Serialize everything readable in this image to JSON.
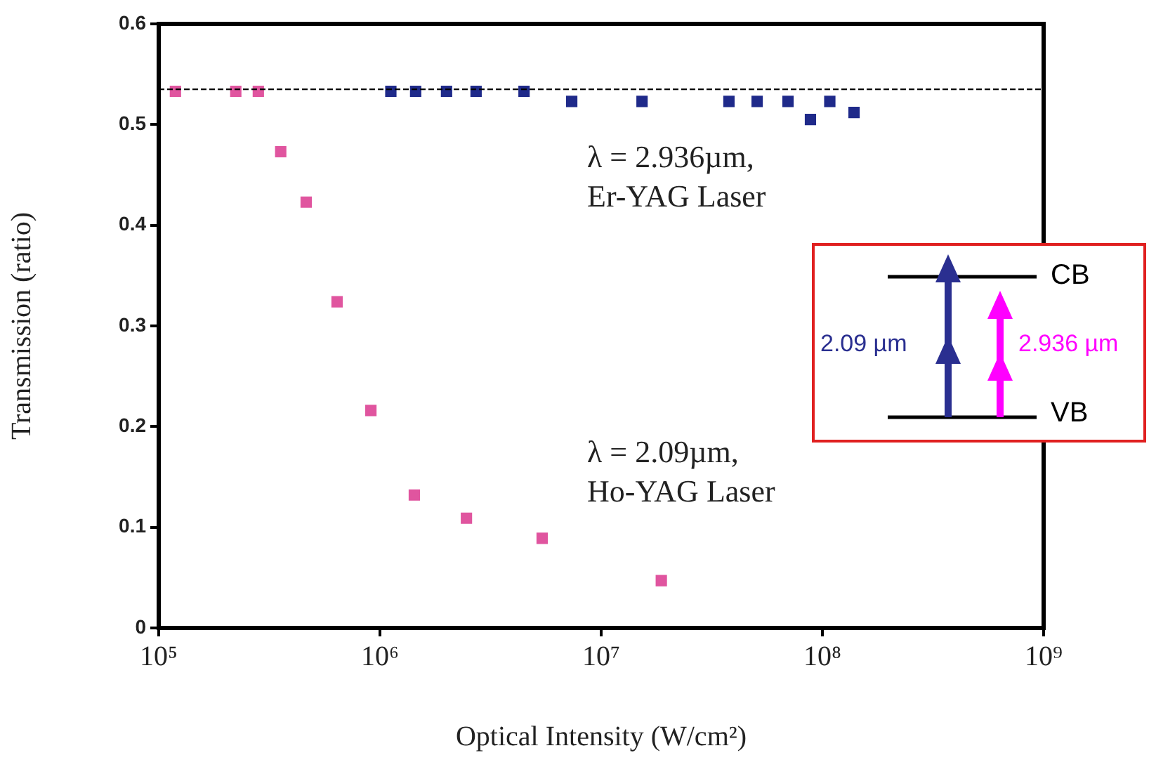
{
  "chart_data": {
    "type": "scatter",
    "xlabel": "Optical Intensity (W/cm²)",
    "ylabel": "Transmission (ratio)",
    "log": "x",
    "grid": false,
    "legend": false,
    "marker": "square",
    "xlim": [
      100000,
      1000000000
    ],
    "xticks": [
      {
        "value": 100000,
        "label": "10⁵"
      },
      {
        "value": 1000000,
        "label": "10⁶"
      },
      {
        "value": 10000000,
        "label": "10⁷"
      },
      {
        "value": 100000000,
        "label": "10⁸"
      },
      {
        "value": 1000000000,
        "label": "10⁹"
      }
    ],
    "ylim": [
      0,
      0.6
    ],
    "yticks": [
      0,
      0.1,
      0.2,
      0.3,
      0.4,
      0.5,
      0.6
    ],
    "series": [
      {
        "color": "#e0559f",
        "x": [
          119000,
          223000,
          282000,
          356000,
          464000,
          640000,
          910000,
          1430000,
          2460000,
          5410000,
          18700000
        ],
        "values": [
          0.533,
          0.533,
          0.533,
          0.473,
          0.423,
          0.324,
          0.216,
          0.132,
          0.109,
          0.089,
          0.047
        ]
      },
      {
        "color": "#1f2a8a",
        "x": [
          1120000,
          1450000,
          2000000,
          2720000,
          4480000,
          7360000,
          15300000,
          37800000,
          50700000,
          69900000,
          88300000,
          108000000,
          139000000
        ],
        "values": [
          0.533,
          0.533,
          0.533,
          0.533,
          0.533,
          0.523,
          0.523,
          0.523,
          0.523,
          0.523,
          0.505,
          0.523,
          0.512
        ]
      }
    ],
    "ref_lines": [
      {
        "axis": "y",
        "value": 0.535,
        "color": "#000000",
        "line_style": "dashed"
      }
    ],
    "annotations": [
      "λ = 2.936µm,\nEr-YAG Laser",
      "λ = 2.09µm,\nHo-YAG Laser",
      "CB",
      "VB",
      "2.09 µm",
      "2.936 µm"
    ]
  }
}
